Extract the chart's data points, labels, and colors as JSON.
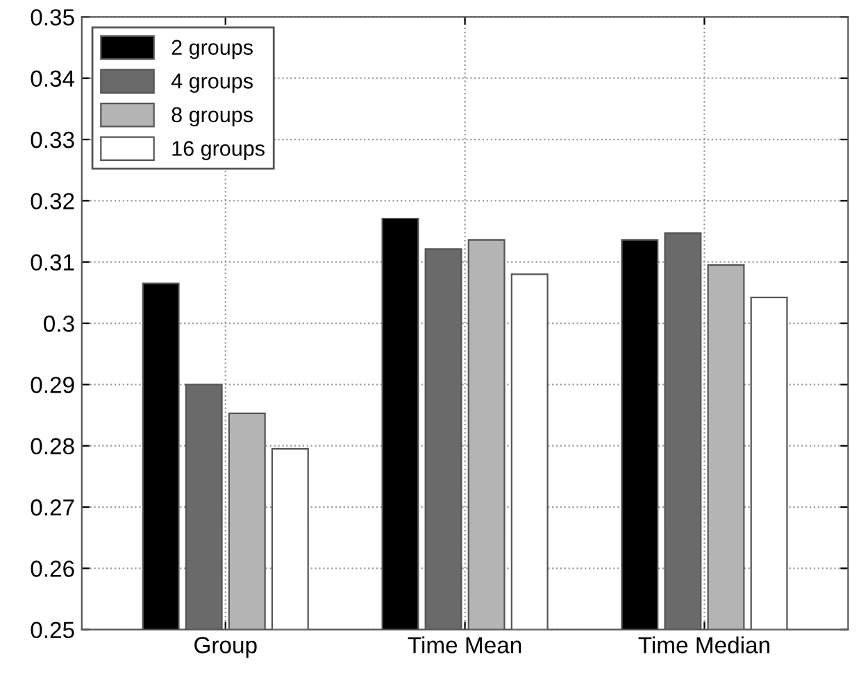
{
  "chart_data": {
    "type": "bar",
    "categories": [
      "Group",
      "Time Mean",
      "Time Median"
    ],
    "series": [
      {
        "name": "2 groups",
        "color": "#000000",
        "values": [
          0.3065,
          0.3171,
          0.3136
        ]
      },
      {
        "name": "4 groups",
        "color": "#6a6a6a",
        "values": [
          0.29,
          0.3121,
          0.3147
        ]
      },
      {
        "name": "8 groups",
        "color": "#b4b4b4",
        "values": [
          0.2853,
          0.3136,
          0.3095
        ]
      },
      {
        "name": "16 groups",
        "color": "#ffffff",
        "values": [
          0.2795,
          0.308,
          0.3042
        ]
      }
    ],
    "ylim": [
      0.25,
      0.35
    ],
    "yticks": [
      0.25,
      0.26,
      0.27,
      0.28,
      0.29,
      0.3,
      0.31,
      0.32,
      0.33,
      0.34,
      0.35
    ],
    "grid": true,
    "legend": "top left"
  }
}
